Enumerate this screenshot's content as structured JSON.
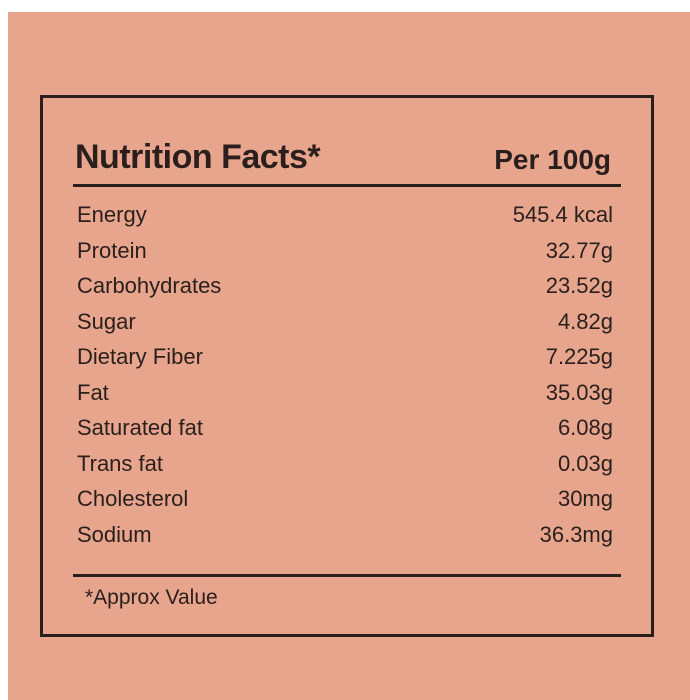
{
  "header": {
    "title": "Nutrition Facts*",
    "basis": "Per 100g"
  },
  "table": {
    "rows": [
      [
        "Energy",
        "545.4 kcal"
      ],
      [
        "Protein",
        "32.77g"
      ],
      [
        "Carbohydrates",
        "23.52g"
      ],
      [
        "Sugar",
        "4.82g"
      ],
      [
        "Dietary Fiber",
        "7.225g"
      ],
      [
        "Fat",
        "35.03g"
      ],
      [
        "Saturated fat",
        "6.08g"
      ],
      [
        "Trans fat",
        "0.03g"
      ],
      [
        "Cholesterol",
        "30mg"
      ],
      [
        "Sodium",
        "36.3mg"
      ]
    ]
  },
  "footnote": "*Approx Value"
}
